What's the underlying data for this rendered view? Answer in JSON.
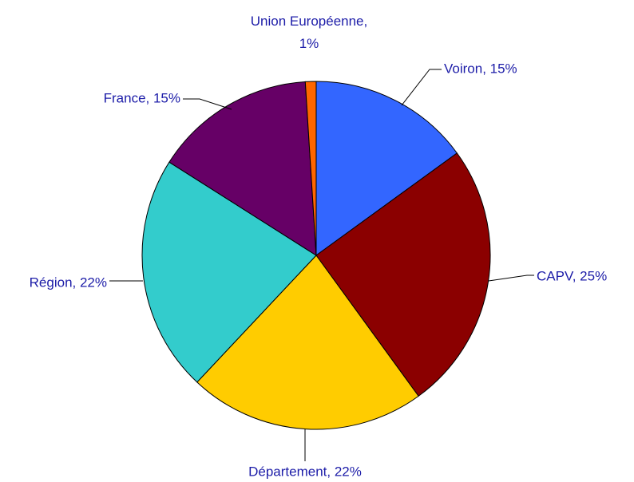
{
  "chart_data": {
    "type": "pie",
    "values": [
      15,
      25,
      22,
      22,
      15,
      1
    ],
    "value_labels": [
      "Voiron, 15%",
      "CAPV, 25%",
      "Département, 22%",
      "Région, 22%",
      "France, 15%",
      "Union Européenne, 1%"
    ],
    "colors": [
      "#3366ff",
      "#8b0000",
      "#ffcc00",
      "#33cccc",
      "#660066",
      "#ff6600"
    ]
  }
}
